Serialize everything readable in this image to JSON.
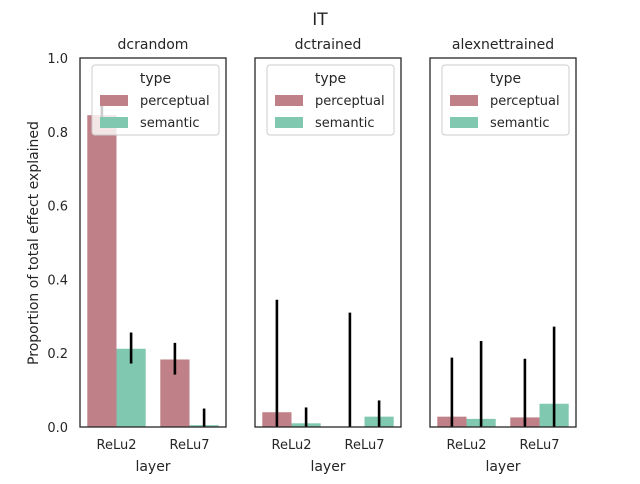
{
  "figure": {
    "suptitle": "IT"
  },
  "colors": {
    "perceptual": "#c08088",
    "semantic": "#80c8b0",
    "errorbar": "#000000",
    "axes": "#262626"
  },
  "chart_data": [
    {
      "type": "bar",
      "title": "dcrandom",
      "xlabel": "layer",
      "ylabel": "Proportion of total effect explained",
      "ylim": [
        0,
        1
      ],
      "yticks": [
        "0.0",
        "0.2",
        "0.4",
        "0.6",
        "0.8",
        "1.0"
      ],
      "categories": [
        "ReLu2",
        "ReLu7"
      ],
      "legend": {
        "title": "type",
        "position": "upper-right"
      },
      "series": [
        {
          "name": "perceptual",
          "values": [
            0.845,
            0.183
          ],
          "err_low": [
            0.83,
            0.142
          ],
          "err_high": [
            0.87,
            0.228
          ]
        },
        {
          "name": "semantic",
          "values": [
            0.212,
            0.005
          ],
          "err_low": [
            0.172,
            0.0
          ],
          "err_high": [
            0.256,
            0.05
          ]
        }
      ]
    },
    {
      "type": "bar",
      "title": "dctrained",
      "xlabel": "layer",
      "ylabel": "",
      "ylim": [
        0,
        1
      ],
      "yticks": [],
      "categories": [
        "ReLu2",
        "ReLu7"
      ],
      "legend": {
        "title": "type",
        "position": "upper-right"
      },
      "series": [
        {
          "name": "perceptual",
          "values": [
            0.04,
            0.0
          ],
          "err_low": [
            0.0,
            0.0
          ],
          "err_high": [
            0.345,
            0.31
          ]
        },
        {
          "name": "semantic",
          "values": [
            0.01,
            0.028
          ],
          "err_low": [
            0.0,
            0.0
          ],
          "err_high": [
            0.053,
            0.072
          ]
        }
      ]
    },
    {
      "type": "bar",
      "title": "alexnettrained",
      "xlabel": "layer",
      "ylabel": "",
      "ylim": [
        0,
        1
      ],
      "yticks": [],
      "categories": [
        "ReLu2",
        "ReLu7"
      ],
      "legend": {
        "title": "type",
        "position": "upper-right"
      },
      "series": [
        {
          "name": "perceptual",
          "values": [
            0.028,
            0.026
          ],
          "err_low": [
            0.0,
            0.0
          ],
          "err_high": [
            0.188,
            0.185
          ]
        },
        {
          "name": "semantic",
          "values": [
            0.022,
            0.063
          ],
          "err_low": [
            0.0,
            0.0
          ],
          "err_high": [
            0.233,
            0.272
          ]
        }
      ]
    }
  ]
}
